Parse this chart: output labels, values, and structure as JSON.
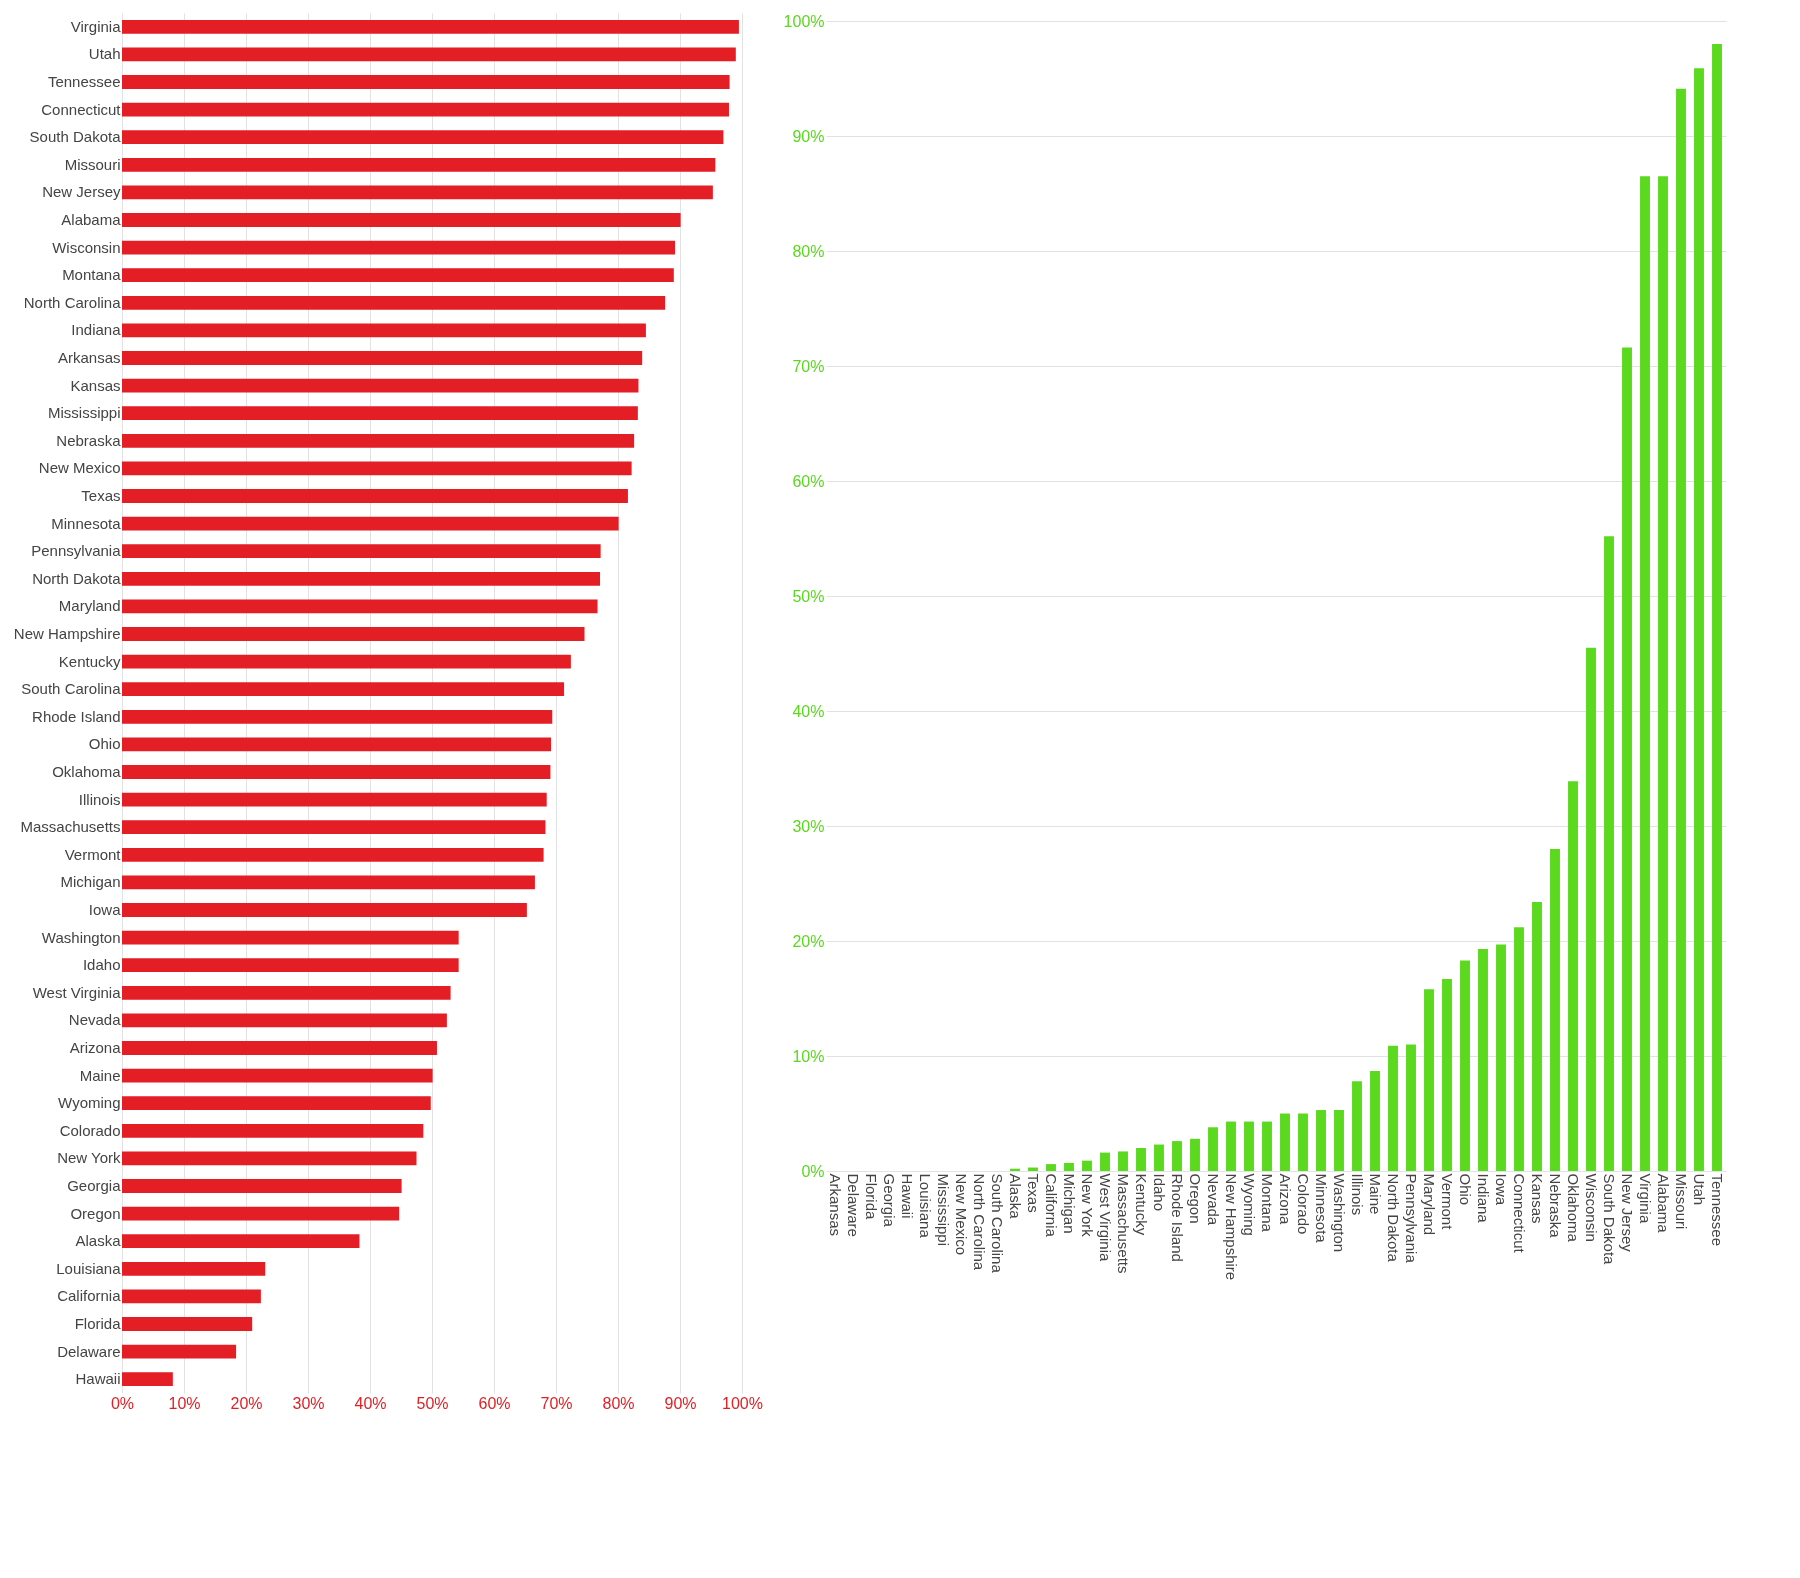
{
  "chart_data": [
    {
      "type": "bar",
      "orientation": "horizontal",
      "color": "#e31e24",
      "grid": "x",
      "categories": [
        "Virginia",
        "Utah",
        "Tennessee",
        "Connecticut",
        "South Dakota",
        "Missouri",
        "New Jersey",
        "Alabama",
        "Wisconsin",
        "Montana",
        "North Carolina",
        "Indiana",
        "Arkansas",
        "Kansas",
        "Mississippi",
        "Nebraska",
        "New Mexico",
        "Texas",
        "Minnesota",
        "Pennsylvania",
        "North Dakota",
        "Maryland",
        "New Hampshire",
        "Kentucky",
        "South Carolina",
        "Rhode Island",
        "Ohio",
        "Oklahoma",
        "Illinois",
        "Massachusetts",
        "Vermont",
        "Michigan",
        "Iowa",
        "Washington",
        "Idaho",
        "West Virginia",
        "Nevada",
        "Arizona",
        "Maine",
        "Wyoming",
        "Colorado",
        "New York",
        "Georgia",
        "Oregon",
        "Alaska",
        "Louisiana",
        "California",
        "Florida",
        "Delaware",
        "Hawaii"
      ],
      "values": [
        99.5,
        99,
        98,
        97.9,
        97,
        95.7,
        95.3,
        90.1,
        89.2,
        89,
        87.6,
        84.5,
        83.9,
        83.3,
        83.2,
        82.6,
        82.2,
        81.6,
        80.1,
        77.2,
        77.1,
        76.7,
        74.6,
        72.4,
        71.3,
        69.4,
        69.2,
        69.1,
        68.5,
        68.3,
        68,
        66.6,
        65.3,
        54.3,
        54.3,
        53,
        52.4,
        50.8,
        50.1,
        49.8,
        48.6,
        47.5,
        45.1,
        44.7,
        38.3,
        23.1,
        22.4,
        21,
        18.4,
        8.2
      ],
      "xlim": [
        0,
        100
      ],
      "xticks": [
        {
          "value": 0,
          "label": "0%"
        },
        {
          "value": 10,
          "label": "10%"
        },
        {
          "value": 20,
          "label": "20%"
        },
        {
          "value": 30,
          "label": "30%"
        },
        {
          "value": 40,
          "label": "40%"
        },
        {
          "value": 50,
          "label": "50%"
        },
        {
          "value": 60,
          "label": "60%"
        },
        {
          "value": 70,
          "label": "70%"
        },
        {
          "value": 80,
          "label": "80%"
        },
        {
          "value": 90,
          "label": "90%"
        },
        {
          "value": 100,
          "label": "100%"
        }
      ]
    },
    {
      "type": "bar",
      "color": "#5ad91e",
      "grid": "y",
      "categories": [
        "Arkansas",
        "Delaware",
        "Florida",
        "Georgia",
        "Hawaii",
        "Louisiana",
        "Mississippi",
        "New Mexico",
        "North Carolina",
        "South Carolina",
        "Alaska",
        "Texas",
        "California",
        "Michigan",
        "New York",
        "West Virginia",
        "Massachusetts",
        "Kentucky",
        "Idaho",
        "Rhode Island",
        "Oregon",
        "Nevada",
        "New Hampshire",
        "Wyoming",
        "Montana",
        "Arizona",
        "Colorado",
        "Minnesota",
        "Washington",
        "Illinois",
        "Maine",
        "North Dakota",
        "Pennsylvania",
        "Maryland",
        "Vermont",
        "Ohio",
        "Indiana",
        "Iowa",
        "Connecticut",
        "Kansas",
        "Nebraska",
        "Oklahoma",
        "Wisconsin",
        "South Dakota",
        "New Jersey",
        "Virginia",
        "Alabama",
        "Missouri",
        "Utah",
        "Tennessee"
      ],
      "values": [
        0,
        0,
        0,
        0,
        0,
        0,
        0,
        0,
        0,
        0,
        0.2,
        0.3,
        0.6,
        0.7,
        0.9,
        1.6,
        1.7,
        2,
        2.3,
        2.6,
        2.8,
        3.8,
        4.3,
        4.3,
        4.3,
        5,
        5,
        5.3,
        5.3,
        7.8,
        8.7,
        10.9,
        11,
        15.8,
        16.7,
        18.3,
        19.3,
        19.7,
        21.2,
        23.4,
        28,
        33.9,
        45.5,
        55.2,
        71.6,
        86.5,
        86.5,
        94.1,
        95.9,
        98
      ],
      "ylim": [
        0,
        100
      ],
      "yticks": [
        {
          "value": 0,
          "label": "0%"
        },
        {
          "value": 10,
          "label": "10%"
        },
        {
          "value": 20,
          "label": "20%"
        },
        {
          "value": 30,
          "label": "30%"
        },
        {
          "value": 40,
          "label": "40%"
        },
        {
          "value": 50,
          "label": "50%"
        },
        {
          "value": 60,
          "label": "60%"
        },
        {
          "value": 70,
          "label": "70%"
        },
        {
          "value": 80,
          "label": "80%"
        },
        {
          "value": 90,
          "label": "90%"
        },
        {
          "value": 100,
          "label": "100%"
        }
      ]
    }
  ]
}
